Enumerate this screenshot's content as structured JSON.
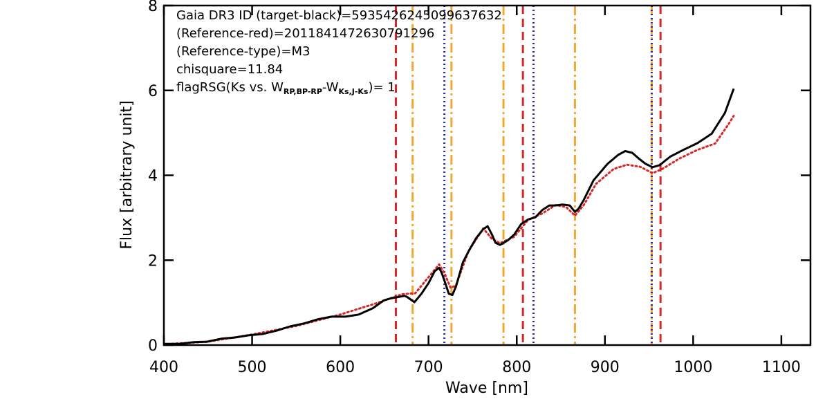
{
  "chart_data": {
    "type": "line",
    "xlabel": "Wave [nm]",
    "ylabel": "Flux [arbitrary unit]",
    "xlim": [
      400,
      1133
    ],
    "ylim": [
      0,
      8
    ],
    "xticks": [
      400,
      500,
      600,
      700,
      800,
      900,
      1000,
      1100
    ],
    "yticks": [
      0,
      2,
      4,
      6,
      8
    ],
    "annotations": [
      "Gaia DR3 ID (target-black)=5935426245099637632",
      "(Reference-red)=2011841472630791296",
      "(Reference-type)=M3",
      "chisquare=11.84"
    ],
    "flag_annotation": [
      "flagRSG(Ks vs. W",
      "RP,BP-RP",
      "-W",
      "Ks,J-Ks",
      ")= 1"
    ],
    "series": [
      {
        "color": "#000000",
        "style": "solid",
        "x": [
          400,
          418,
          434,
          449,
          465,
          481,
          496,
          512,
          528,
          543,
          559,
          575,
          590,
          606,
          621,
          637,
          649,
          657,
          665,
          673,
          676,
          684,
          692,
          700,
          707,
          712,
          715,
          719,
          723,
          727,
          731,
          739,
          747,
          754,
          762,
          767,
          772,
          776,
          781,
          790,
          797,
          805,
          813,
          821,
          829,
          837,
          844,
          852,
          860,
          866,
          870,
          876,
          887,
          903,
          915,
          923,
          931,
          938,
          946,
          954,
          962,
          974,
          989,
          1005,
          1021,
          1036,
          1046
        ],
        "y": [
          0.03,
          0.03,
          0.07,
          0.08,
          0.15,
          0.18,
          0.23,
          0.26,
          0.34,
          0.44,
          0.51,
          0.61,
          0.67,
          0.67,
          0.72,
          0.87,
          1.05,
          1.1,
          1.13,
          1.16,
          1.13,
          1.01,
          1.21,
          1.46,
          1.74,
          1.82,
          1.7,
          1.46,
          1.21,
          1.18,
          1.37,
          1.95,
          2.27,
          2.52,
          2.73,
          2.8,
          2.6,
          2.41,
          2.36,
          2.47,
          2.6,
          2.85,
          2.96,
          3.01,
          3.18,
          3.29,
          3.29,
          3.31,
          3.29,
          3.14,
          3.21,
          3.42,
          3.88,
          4.27,
          4.48,
          4.57,
          4.53,
          4.4,
          4.27,
          4.19,
          4.24,
          4.44,
          4.6,
          4.76,
          4.98,
          5.47,
          6.04
        ]
      },
      {
        "color": "#d62728",
        "style": "dotted",
        "x": [
          400,
          450,
          500,
          550,
          600,
          640,
          670,
          685,
          700,
          712,
          718,
          725,
          731,
          745,
          762,
          772,
          781,
          797,
          813,
          829,
          844,
          856,
          866,
          876,
          890,
          910,
          925,
          940,
          954,
          965,
          985,
          1005,
          1025,
          1040,
          1046
        ],
        "y": [
          0.02,
          0.08,
          0.25,
          0.45,
          0.72,
          0.98,
          1.2,
          1.22,
          1.6,
          1.9,
          1.7,
          1.35,
          1.4,
          2.2,
          2.75,
          2.5,
          2.4,
          2.55,
          2.95,
          3.1,
          3.3,
          3.25,
          3.05,
          3.3,
          3.8,
          4.15,
          4.25,
          4.2,
          4.05,
          4.15,
          4.4,
          4.6,
          4.75,
          5.2,
          5.4
        ]
      }
    ],
    "reference_lines": [
      {
        "color": "#d62728",
        "style": "dashed",
        "values": [
          663,
          807,
          963
        ]
      },
      {
        "color": "#f0a830",
        "style": "dashdot",
        "values": [
          682,
          726,
          785,
          866,
          953
        ]
      },
      {
        "color": "#2b2b9a",
        "style": "dotted",
        "values": [
          718,
          819,
          953
        ]
      }
    ]
  }
}
